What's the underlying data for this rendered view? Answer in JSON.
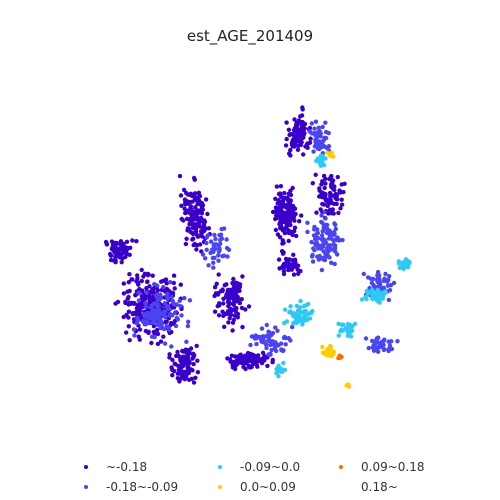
{
  "title": "est_AGE_201409",
  "legend": [
    {
      "label": "~-0.18",
      "color": "#3a00c9"
    },
    {
      "label": "-0.18~-0.09",
      "color": "#4a44f2"
    },
    {
      "label": "-0.09~0.0",
      "color": "#2fc9f3"
    },
    {
      "label": "0.0~0.09",
      "color": "#ffcc00"
    },
    {
      "label": "0.09~0.18",
      "color": "#ff6a00"
    },
    {
      "label": "0.18~",
      "color": "#ffffff"
    }
  ]
}
